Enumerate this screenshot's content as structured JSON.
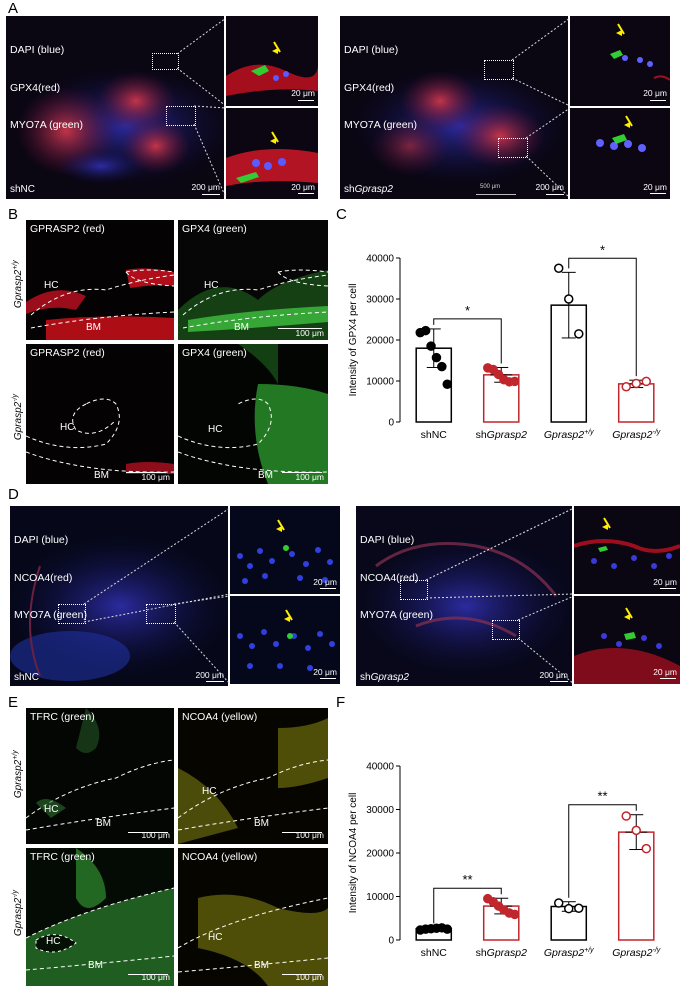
{
  "panels": {
    "A": {
      "label": "A",
      "left": {
        "legend": [
          "DAPI (blue)",
          "GPX4(red)",
          "MYO7A (green)"
        ],
        "condition": "shNC",
        "scale": "200 μm",
        "inset_scale": "20 μm"
      },
      "right": {
        "legend": [
          "DAPI (blue)",
          "GPX4(red)",
          "MYO7A (green)"
        ],
        "condition_prefix": "sh",
        "condition_gene": "Gprasp2",
        "scale": "200 μm",
        "scale_small": "500 μm",
        "inset_scale": "20 μm"
      }
    },
    "B": {
      "label": "B",
      "images": [
        {
          "title": "GPRASP2 (red)",
          "hc": "HC",
          "bm": "BM",
          "scale": ""
        },
        {
          "title": "GPX4 (green)",
          "hc": "HC",
          "bm": "BM",
          "scale": "100 μm"
        },
        {
          "title": "GPRASP2 (red)",
          "hc": "HC",
          "bm": "BM",
          "scale": "100 μm"
        },
        {
          "title": "GPX4 (green)",
          "hc": "HC",
          "bm": "BM",
          "scale": "100 μm"
        }
      ],
      "row_labels": [
        "Gprasp2+/y",
        "Gprasp2-/y"
      ]
    },
    "D": {
      "label": "D",
      "left": {
        "legend": [
          "DAPI (blue)",
          "NCOA4(red)",
          "MYO7A (green)"
        ],
        "condition": "shNC",
        "scale": "200 μm",
        "inset_scale": "20 μm"
      },
      "right": {
        "legend": [
          "DAPI (blue)",
          "NCOA4(red)",
          "MYO7A (green)"
        ],
        "condition_prefix": "sh",
        "condition_gene": "Gprasp2",
        "scale": "200 μm",
        "inset_scale": "20 μm"
      }
    },
    "E": {
      "label": "E",
      "images": [
        {
          "title": "TFRC (green)",
          "hc": "HC",
          "bm": "BM",
          "scale": "100 μm"
        },
        {
          "title": "NCOA4 (yellow)",
          "hc": "HC",
          "bm": "BM",
          "scale": "100 μm"
        },
        {
          "title": "TFRC (green)",
          "hc": "HC",
          "bm": "BM",
          "scale": "100 μm"
        },
        {
          "title": "NCOA4 (yellow)",
          "hc": "HC",
          "bm": "BM",
          "scale": "100 μm"
        }
      ],
      "row_labels": [
        "Gprasp2+/y",
        "Gprasp2-/y"
      ]
    },
    "C": {
      "label": "C"
    },
    "F": {
      "label": "F"
    }
  },
  "chart_data": [
    {
      "panel": "C",
      "type": "bar",
      "ylabel": "Intensity of GPX4 per cell",
      "ylim": [
        0,
        40000
      ],
      "yticks": [
        0,
        10000,
        20000,
        30000,
        40000
      ],
      "categories": [
        "shNC",
        "shGprasp2",
        "Gprasp2+/y",
        "Gprasp2-/y"
      ],
      "category_labels": [
        {
          "plain": "shNC",
          "italic": "",
          "sup": ""
        },
        {
          "plain": "sh",
          "italic": "Gprasp2",
          "sup": ""
        },
        {
          "plain": "",
          "italic": "Gprasp2",
          "sup": "+/y"
        },
        {
          "plain": "",
          "italic": "Gprasp2",
          "sup": "-/y"
        }
      ],
      "values": [
        18000,
        11500,
        28500,
        9300
      ],
      "errors": [
        4700,
        1800,
        8000,
        900
      ],
      "points": [
        [
          21800,
          22300,
          18500,
          15700,
          13500,
          9200
        ],
        [
          13200,
          12800,
          11600,
          10300,
          9800,
          9900
        ],
        [
          37500,
          30000,
          21500
        ],
        [
          8600,
          9400,
          9900
        ]
      ],
      "colors": [
        "#000000",
        "#c0272d",
        "#000000",
        "#c0272d"
      ],
      "point_fill": [
        true,
        true,
        false,
        false
      ],
      "comparisons": [
        {
          "from": 0,
          "to": 1,
          "label": "*"
        },
        {
          "from": 2,
          "to": 3,
          "label": "*"
        }
      ]
    },
    {
      "panel": "F",
      "type": "bar",
      "ylabel": "Intensity of NCOA4 per cell",
      "ylim": [
        0,
        40000
      ],
      "yticks": [
        0,
        10000,
        20000,
        30000,
        40000
      ],
      "categories": [
        "shNC",
        "shGprasp2",
        "Gprasp2+/y",
        "Gprasp2-/y"
      ],
      "category_labels": [
        {
          "plain": "shNC",
          "italic": "",
          "sup": ""
        },
        {
          "plain": "sh",
          "italic": "Gprasp2",
          "sup": ""
        },
        {
          "plain": "",
          "italic": "Gprasp2",
          "sup": "+/y"
        },
        {
          "plain": "",
          "italic": "Gprasp2",
          "sup": "-/y"
        }
      ],
      "values": [
        2600,
        7800,
        7700,
        24800
      ],
      "errors": [
        300,
        1800,
        1100,
        4000
      ],
      "points": [
        [
          2300,
          2500,
          2600,
          2700,
          2800,
          2500
        ],
        [
          9500,
          8800,
          7800,
          6900,
          6200,
          5900
        ],
        [
          8500,
          7200,
          7300
        ],
        [
          28500,
          25200,
          21000
        ]
      ],
      "colors": [
        "#000000",
        "#c0272d",
        "#000000",
        "#c0272d"
      ],
      "point_fill": [
        true,
        true,
        false,
        false
      ],
      "comparisons": [
        {
          "from": 0,
          "to": 1,
          "label": "**"
        },
        {
          "from": 2,
          "to": 3,
          "label": "**"
        }
      ]
    }
  ]
}
